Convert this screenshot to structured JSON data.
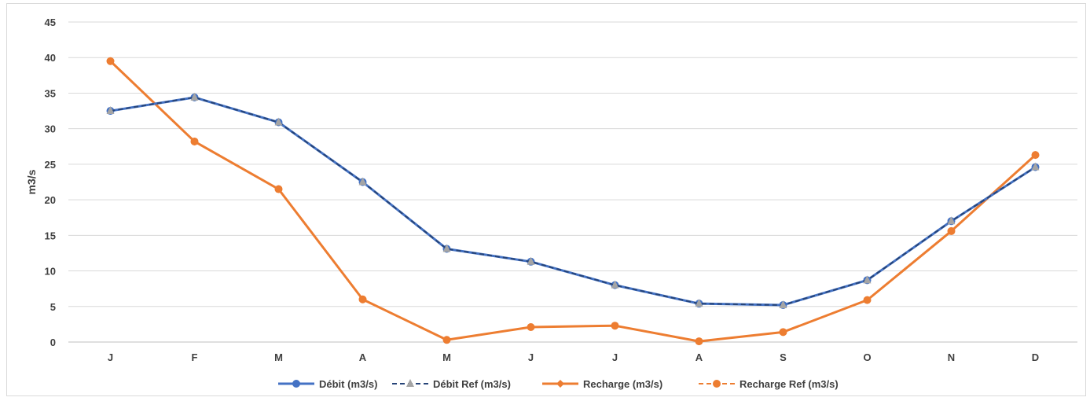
{
  "chart_data": {
    "type": "line",
    "title": "",
    "xlabel": "",
    "ylabel": "m3/s",
    "categories": [
      "J",
      "F",
      "M",
      "A",
      "M",
      "J",
      "J",
      "A",
      "S",
      "O",
      "N",
      "D"
    ],
    "ylim": [
      0,
      45
    ],
    "yticks": [
      0,
      5,
      10,
      15,
      20,
      25,
      30,
      35,
      40,
      45
    ],
    "grid": "horizontal",
    "legend_position": "bottom",
    "series": [
      {
        "name": "Débit (m3/s)",
        "color": "#4472C4",
        "line_style": "solid",
        "marker": "circle",
        "values": [
          32.5,
          34.4,
          30.9,
          22.5,
          13.1,
          11.3,
          8.0,
          5.4,
          5.2,
          8.7,
          17.0,
          24.6
        ]
      },
      {
        "name": "Débit Ref (m3/s)",
        "color": "#264478",
        "line_style": "dashed",
        "marker": "triangle",
        "marker_color": "#A5A5A5",
        "values": [
          32.5,
          34.4,
          30.9,
          22.5,
          13.1,
          11.3,
          8.0,
          5.4,
          5.2,
          8.7,
          17.0,
          24.6
        ]
      },
      {
        "name": "Recharge (m3/s)",
        "color": "#ED7D31",
        "line_style": "solid",
        "marker": "diamond",
        "values": [
          39.5,
          28.2,
          21.5,
          6.0,
          0.3,
          2.1,
          2.3,
          0.1,
          1.4,
          5.9,
          15.6,
          26.3
        ]
      },
      {
        "name": "Recharge Ref (m3/s)",
        "color": "#ED7D31",
        "line_style": "dashed",
        "marker": "circle",
        "values": [
          39.5,
          28.2,
          21.5,
          6.0,
          0.3,
          2.1,
          2.3,
          0.1,
          1.4,
          5.9,
          15.6,
          26.3
        ]
      }
    ]
  }
}
